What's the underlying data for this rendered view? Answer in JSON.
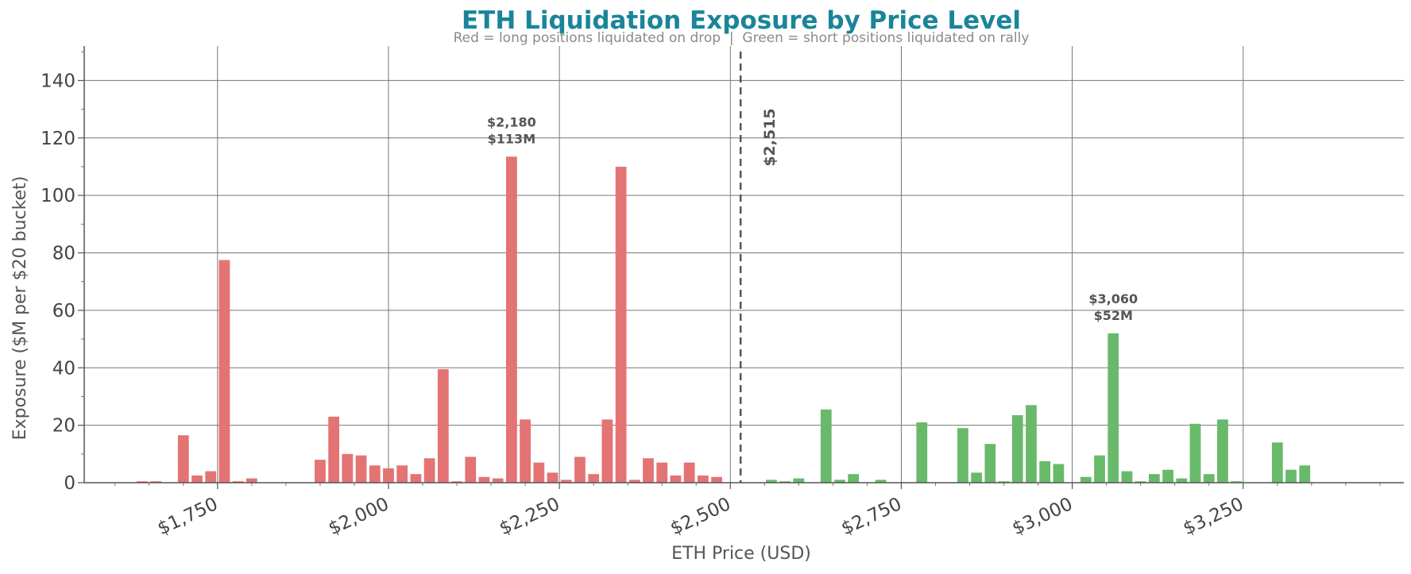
{
  "chart_data": {
    "type": "bar",
    "title": "ETH Liquidation Exposure by Price Level",
    "subtitle": "Red = long positions liquidated on drop  |  Green = short positions liquidated on rally",
    "xlabel": "ETH Price (USD)",
    "ylabel": "Exposure ($M per $20 bucket)",
    "xlim": [
      1555,
      3485
    ],
    "ylim": [
      0,
      152
    ],
    "x_ticks": [
      1750,
      2000,
      2250,
      2500,
      2750,
      3000,
      3250
    ],
    "x_tick_labels": [
      "$1,750",
      "$2,000",
      "$2,250",
      "$2,500",
      "$2,750",
      "$3,000",
      "$3,250"
    ],
    "y_ticks": [
      0,
      20,
      40,
      60,
      80,
      100,
      120,
      140
    ],
    "y_tick_labels": [
      "0",
      "20",
      "40",
      "60",
      "80",
      "100",
      "120",
      "140"
    ],
    "grid": true,
    "bucket_width": 20,
    "current_price": 2515,
    "current_price_label": "$2,515",
    "colors": {
      "title": "#1a8599",
      "long": "#e47373",
      "short": "#69b96b",
      "marker": "#555555"
    },
    "series": [
      {
        "name": "long",
        "color": "#e47373",
        "points": [
          {
            "x": 1640,
            "y": 0.5
          },
          {
            "x": 1660,
            "y": 0.5
          },
          {
            "x": 1700,
            "y": 16.5
          },
          {
            "x": 1720,
            "y": 2.5
          },
          {
            "x": 1740,
            "y": 4
          },
          {
            "x": 1760,
            "y": 77.5
          },
          {
            "x": 1780,
            "y": 0.5
          },
          {
            "x": 1800,
            "y": 1.5
          },
          {
            "x": 1900,
            "y": 8
          },
          {
            "x": 1920,
            "y": 23
          },
          {
            "x": 1940,
            "y": 10
          },
          {
            "x": 1960,
            "y": 9.5
          },
          {
            "x": 1980,
            "y": 6
          },
          {
            "x": 2000,
            "y": 5
          },
          {
            "x": 2020,
            "y": 6
          },
          {
            "x": 2040,
            "y": 3
          },
          {
            "x": 2060,
            "y": 8.5
          },
          {
            "x": 2080,
            "y": 39.5
          },
          {
            "x": 2100,
            "y": 0.5
          },
          {
            "x": 2120,
            "y": 9
          },
          {
            "x": 2140,
            "y": 2
          },
          {
            "x": 2160,
            "y": 1.5
          },
          {
            "x": 2180,
            "y": 113.5
          },
          {
            "x": 2200,
            "y": 22
          },
          {
            "x": 2220,
            "y": 7
          },
          {
            "x": 2240,
            "y": 3.5
          },
          {
            "x": 2260,
            "y": 1
          },
          {
            "x": 2280,
            "y": 9
          },
          {
            "x": 2300,
            "y": 3
          },
          {
            "x": 2320,
            "y": 22
          },
          {
            "x": 2340,
            "y": 110
          },
          {
            "x": 2360,
            "y": 1
          },
          {
            "x": 2380,
            "y": 8.5
          },
          {
            "x": 2400,
            "y": 7
          },
          {
            "x": 2420,
            "y": 2.5
          },
          {
            "x": 2440,
            "y": 7
          },
          {
            "x": 2460,
            "y": 2.5
          },
          {
            "x": 2480,
            "y": 2
          }
        ]
      },
      {
        "name": "short",
        "color": "#69b96b",
        "points": [
          {
            "x": 2560,
            "y": 1
          },
          {
            "x": 2580,
            "y": 0.5
          },
          {
            "x": 2600,
            "y": 1.5
          },
          {
            "x": 2640,
            "y": 25.5
          },
          {
            "x": 2660,
            "y": 1
          },
          {
            "x": 2680,
            "y": 3
          },
          {
            "x": 2720,
            "y": 1
          },
          {
            "x": 2780,
            "y": 21
          },
          {
            "x": 2840,
            "y": 19
          },
          {
            "x": 2860,
            "y": 3.5
          },
          {
            "x": 2880,
            "y": 13.5
          },
          {
            "x": 2900,
            "y": 0.5
          },
          {
            "x": 2920,
            "y": 23.5
          },
          {
            "x": 2940,
            "y": 27
          },
          {
            "x": 2960,
            "y": 7.5
          },
          {
            "x": 2980,
            "y": 6.5
          },
          {
            "x": 3020,
            "y": 2
          },
          {
            "x": 3040,
            "y": 9.5
          },
          {
            "x": 3060,
            "y": 52
          },
          {
            "x": 3080,
            "y": 4
          },
          {
            "x": 3100,
            "y": 0.5
          },
          {
            "x": 3120,
            "y": 3
          },
          {
            "x": 3140,
            "y": 4.5
          },
          {
            "x": 3160,
            "y": 1.5
          },
          {
            "x": 3180,
            "y": 20.5
          },
          {
            "x": 3200,
            "y": 3
          },
          {
            "x": 3220,
            "y": 22
          },
          {
            "x": 3240,
            "y": 0.5
          },
          {
            "x": 3300,
            "y": 14
          },
          {
            "x": 3320,
            "y": 4.5
          },
          {
            "x": 3340,
            "y": 6
          }
        ]
      }
    ],
    "annotations": [
      {
        "x": 2180,
        "y": 113.5,
        "lines": [
          "$2,180",
          "$113M"
        ]
      },
      {
        "x": 3060,
        "y": 52,
        "lines": [
          "$3,060",
          "$52M"
        ]
      }
    ]
  }
}
